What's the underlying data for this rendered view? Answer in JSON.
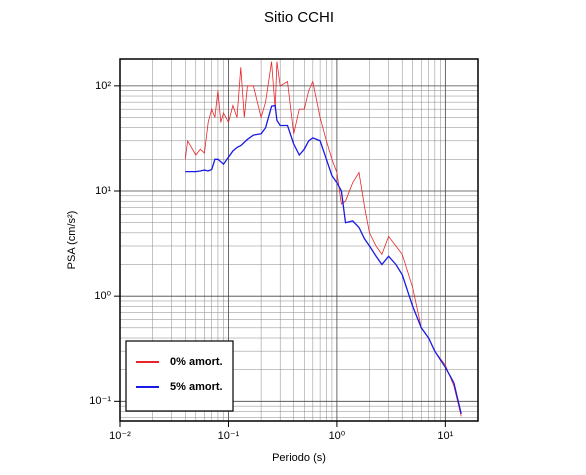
{
  "chart_data": {
    "type": "line",
    "title": "Sitio CCHI",
    "xlabel": "Periodo (s)",
    "ylabel": "PSA (cm/s²)",
    "log_x": true,
    "log_y": true,
    "grid": true,
    "legend": "lower left",
    "xlim": [
      0.01,
      20
    ],
    "ylim": [
      0.065,
      180
    ],
    "xticks": [
      {
        "value": 0.01,
        "label": "10⁻²"
      },
      {
        "value": 0.1,
        "label": "10⁻¹"
      },
      {
        "value": 1,
        "label": "10⁰"
      },
      {
        "value": 10,
        "label": "10¹"
      }
    ],
    "yticks": [
      {
        "value": 0.1,
        "label": "10⁻¹"
      },
      {
        "value": 1,
        "label": "10⁰"
      },
      {
        "value": 10,
        "label": "10¹"
      },
      {
        "value": 100,
        "label": "10²"
      }
    ],
    "xminor_ticks": [
      0.02,
      0.03,
      0.04,
      0.05,
      0.06,
      0.07,
      0.08,
      0.09,
      0.2,
      0.3,
      0.4,
      0.5,
      0.6,
      0.7,
      0.8,
      0.9,
      2,
      3,
      4,
      5,
      6,
      7,
      8,
      9,
      20
    ],
    "yminor_ticks": [
      0.07,
      0.08,
      0.09,
      0.2,
      0.3,
      0.4,
      0.5,
      0.6,
      0.7,
      0.8,
      0.9,
      2,
      3,
      4,
      5,
      6,
      7,
      8,
      9,
      20,
      30,
      40,
      50,
      60,
      70,
      80,
      90
    ],
    "x": [
      0.04,
      0.042,
      0.05,
      0.055,
      0.06,
      0.065,
      0.07,
      0.075,
      0.08,
      0.085,
      0.09,
      0.1,
      0.11,
      0.12,
      0.13,
      0.14,
      0.15,
      0.17,
      0.2,
      0.22,
      0.25,
      0.27,
      0.28,
      0.3,
      0.35,
      0.4,
      0.45,
      0.5,
      0.55,
      0.6,
      0.7,
      0.8,
      0.9,
      1.0,
      1.1,
      1.2,
      1.4,
      1.6,
      1.8,
      2.0,
      2.3,
      2.6,
      3.0,
      3.5,
      4.0,
      5,
      6,
      7,
      8,
      10,
      12,
      14
    ],
    "series": [
      {
        "name": "0% amort.",
        "color": "#e8262a",
        "values": [
          20,
          30,
          22,
          25,
          23,
          45,
          60,
          50,
          90,
          45,
          55,
          45,
          65,
          50,
          150,
          50,
          100,
          100,
          50,
          70,
          170,
          60,
          170,
          100,
          110,
          35,
          60,
          60,
          90,
          110,
          50,
          30,
          20,
          15,
          7.5,
          8,
          12,
          15,
          7,
          4,
          3,
          2.5,
          3.7,
          3.0,
          2.5,
          1.2,
          0.5,
          0.4,
          0.3,
          0.22,
          0.14,
          0.072
        ]
      },
      {
        "name": "5% amort.",
        "color": "#1a1ae6",
        "values": [
          15.3,
          15.3,
          15.3,
          15.5,
          15.8,
          15.5,
          16,
          20,
          20,
          19,
          18,
          21,
          24,
          26,
          27,
          29,
          31,
          34,
          35,
          40,
          64,
          65,
          47,
          42,
          42,
          28,
          22,
          25,
          30,
          32,
          30,
          20,
          14,
          12,
          10,
          5,
          5.2,
          4.5,
          3.5,
          3,
          2.4,
          2.0,
          2.4,
          2.0,
          1.6,
          0.8,
          0.5,
          0.4,
          0.3,
          0.21,
          0.15,
          0.076
        ]
      }
    ]
  }
}
